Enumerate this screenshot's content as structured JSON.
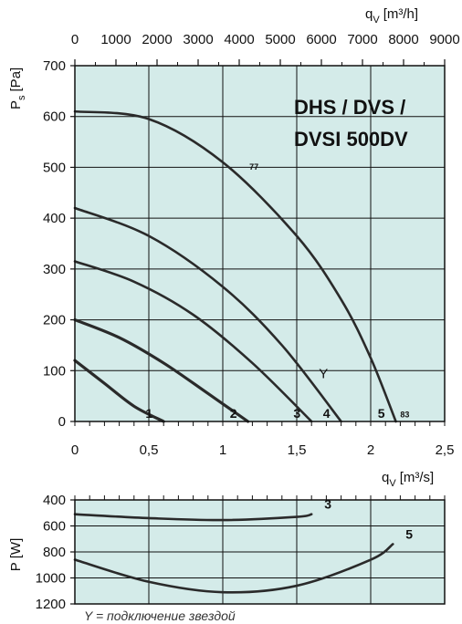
{
  "chart_data": [
    {
      "type": "line",
      "title_lines": [
        "DHS / DVS /",
        "DVSI 500DV"
      ],
      "ylabel_main": "P",
      "ylabel_sub": "s",
      "ylabel_unit": "[Pa]",
      "xlabel_bottom_main": "q",
      "xlabel_bottom_sub": "V",
      "xlabel_bottom_unit": "[m³/s]",
      "xlabel_top_main": "q",
      "xlabel_top_sub": "V",
      "xlabel_top_unit": "[m³/h]",
      "xlim": [
        0,
        2.5
      ],
      "ylim": [
        0,
        700
      ],
      "xticks": [
        "0",
        "0,5",
        "1",
        "1,5",
        "2",
        "2,5"
      ],
      "yticks": [
        "0",
        "100",
        "200",
        "300",
        "400",
        "500",
        "600",
        "700"
      ],
      "top_xticks": [
        "0",
        "1000",
        "2000",
        "3000",
        "4000",
        "5000",
        "6000",
        "7000",
        "8000",
        "9000"
      ],
      "grid": true,
      "series": [
        {
          "name": "1",
          "x": [
            0,
            0.2,
            0.4,
            0.6
          ],
          "y": [
            120,
            75,
            30,
            0
          ]
        },
        {
          "name": "2",
          "x": [
            0,
            0.3,
            0.6,
            0.9,
            1.17
          ],
          "y": [
            200,
            165,
            115,
            55,
            0
          ]
        },
        {
          "name": "3",
          "x": [
            0,
            0.4,
            0.8,
            1.2,
            1.6
          ],
          "y": [
            315,
            275,
            210,
            115,
            0
          ]
        },
        {
          "name": "4",
          "x": [
            0,
            0.5,
            1.0,
            1.4,
            1.8
          ],
          "y": [
            420,
            365,
            265,
            150,
            0
          ]
        },
        {
          "name": "5",
          "x": [
            0,
            0.5,
            1.0,
            1.5,
            1.8,
            2.0,
            2.17
          ],
          "y": [
            610,
            595,
            510,
            365,
            240,
            125,
            0
          ]
        }
      ],
      "annotations": [
        {
          "text": "77",
          "x": 1.18,
          "y": 495
        },
        {
          "text": "83",
          "x": 2.2,
          "y": 8
        },
        {
          "text": "Y",
          "x": 1.65,
          "y": 85
        }
      ]
    },
    {
      "type": "line",
      "ylabel_main": "P",
      "ylabel_unit": "[W]",
      "xlim": [
        0,
        2.5
      ],
      "ylim": [
        400,
        1200
      ],
      "yaxis_inverted": true,
      "yticks": [
        "400",
        "600",
        "800",
        "1000",
        "1200"
      ],
      "grid": true,
      "series": [
        {
          "name": "3",
          "x": [
            0,
            0.5,
            1.0,
            1.5,
            1.6
          ],
          "y": [
            510,
            540,
            555,
            530,
            510
          ]
        },
        {
          "name": "5",
          "x": [
            0,
            0.5,
            1.0,
            1.5,
            2.0,
            2.15
          ],
          "y": [
            860,
            1030,
            1110,
            1060,
            860,
            740
          ]
        }
      ]
    }
  ],
  "footnote": "Y = подключение звездой",
  "colors": {
    "plot_bg": "#d4ebe9",
    "curve": "#2a2a2a",
    "grid": "#111111"
  }
}
